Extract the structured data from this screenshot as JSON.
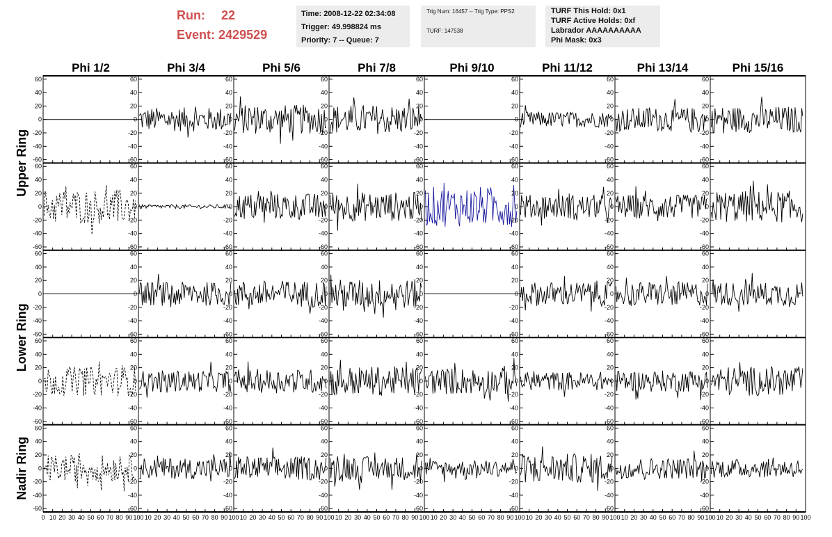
{
  "header": {
    "run_label": "Run:",
    "run_value": "22",
    "event_label": "Event:",
    "event_value": "2429529",
    "time_box": {
      "time": "Time: 2008-12-22 02:34:08",
      "trigger": "Trigger: 49.998824 ms",
      "priority": "Priority: 7 -- Queue: 7"
    },
    "trig_box": {
      "trig": "Trig Num: 16457 -- Trig Type: PPS2",
      "turf": "TURF: 147538"
    },
    "turf_box": {
      "hold": "TURF This Hold: 0x1",
      "active": "TURF Active Holds: 0xf",
      "labrador": "Labrador AAAAAAAAAA",
      "phi_mask": "Phi Mask: 0x3"
    }
  },
  "chart_data": {
    "type": "line",
    "columns": [
      "Phi 1/2",
      "Phi 3/4",
      "Phi 5/6",
      "Phi 7/8",
      "Phi 9/10",
      "Phi 11/12",
      "Phi 13/14",
      "Phi 15/16"
    ],
    "ring_labels": [
      "Upper Ring",
      "Lower Ring",
      "Nadir Ring"
    ],
    "ring_row_spans": [
      [
        0,
        1
      ],
      [
        2,
        3
      ],
      [
        4,
        4
      ]
    ],
    "rows": 5,
    "ylim": [
      -65,
      65
    ],
    "xlim": [
      0,
      100
    ],
    "y_ticks": [
      60,
      40,
      20,
      0,
      -20,
      -40,
      -60
    ],
    "y_tick_labels": [
      "60",
      "40",
      "20",
      "0",
      "-20",
      "-40",
      "-60"
    ],
    "x_ticks": [
      0,
      10,
      20,
      30,
      40,
      50,
      60,
      70,
      80,
      90,
      100
    ],
    "x_tick_labels": [
      "0",
      "10",
      "20",
      "30",
      "40",
      "50",
      "60",
      "70",
      "80",
      "90",
      "100"
    ],
    "colors": {
      "trace": "#000000",
      "highlight": "#1a1a9e",
      "frame": "#000000"
    },
    "panels": [
      [
        {
          "style": "flat"
        },
        {
          "style": "solid",
          "amp": 18,
          "n": 96
        },
        {
          "style": "solid",
          "amp": 22,
          "n": 96
        },
        {
          "style": "solid",
          "amp": 22,
          "n": 96
        },
        {
          "style": "flat"
        },
        {
          "style": "solid",
          "amp": 12,
          "n": 96
        },
        {
          "style": "solid",
          "amp": 18,
          "n": 96
        },
        {
          "style": "solid",
          "amp": 20,
          "n": 96
        }
      ],
      [
        {
          "style": "dashed",
          "amp": 26,
          "n": 88
        },
        {
          "style": "solid",
          "amp": 3,
          "n": 96
        },
        {
          "style": "solid",
          "amp": 20,
          "n": 96
        },
        {
          "style": "solid",
          "amp": 22,
          "n": 96
        },
        {
          "style": "highlight",
          "amp": 30,
          "n": 88
        },
        {
          "style": "solid",
          "amp": 18,
          "n": 96
        },
        {
          "style": "solid",
          "amp": 18,
          "n": 96
        },
        {
          "style": "solid",
          "amp": 24,
          "n": 96
        }
      ],
      [
        {
          "style": "flat"
        },
        {
          "style": "solid",
          "amp": 18,
          "n": 96
        },
        {
          "style": "solid",
          "amp": 20,
          "n": 96
        },
        {
          "style": "solid",
          "amp": 22,
          "n": 96
        },
        {
          "style": "flat"
        },
        {
          "style": "solid",
          "amp": 18,
          "n": 96
        },
        {
          "style": "solid",
          "amp": 18,
          "n": 96
        },
        {
          "style": "solid",
          "amp": 18,
          "n": 96
        }
      ],
      [
        {
          "style": "dashed",
          "amp": 22,
          "n": 88
        },
        {
          "style": "solid",
          "amp": 16,
          "n": 96
        },
        {
          "style": "solid",
          "amp": 18,
          "n": 96
        },
        {
          "style": "solid",
          "amp": 22,
          "n": 96
        },
        {
          "style": "solid",
          "amp": 20,
          "n": 96
        },
        {
          "style": "solid",
          "amp": 14,
          "n": 96
        },
        {
          "style": "solid",
          "amp": 16,
          "n": 96
        },
        {
          "style": "solid",
          "amp": 22,
          "n": 96
        }
      ],
      [
        {
          "style": "dashed",
          "amp": 20,
          "n": 88
        },
        {
          "style": "solid",
          "amp": 16,
          "n": 96
        },
        {
          "style": "solid",
          "amp": 18,
          "n": 96
        },
        {
          "style": "solid",
          "amp": 18,
          "n": 96
        },
        {
          "style": "solid",
          "amp": 12,
          "n": 96
        },
        {
          "style": "solid",
          "amp": 22,
          "n": 96
        },
        {
          "style": "solid",
          "amp": 16,
          "n": 96
        },
        {
          "style": "solid",
          "amp": 14,
          "n": 96
        }
      ]
    ]
  }
}
